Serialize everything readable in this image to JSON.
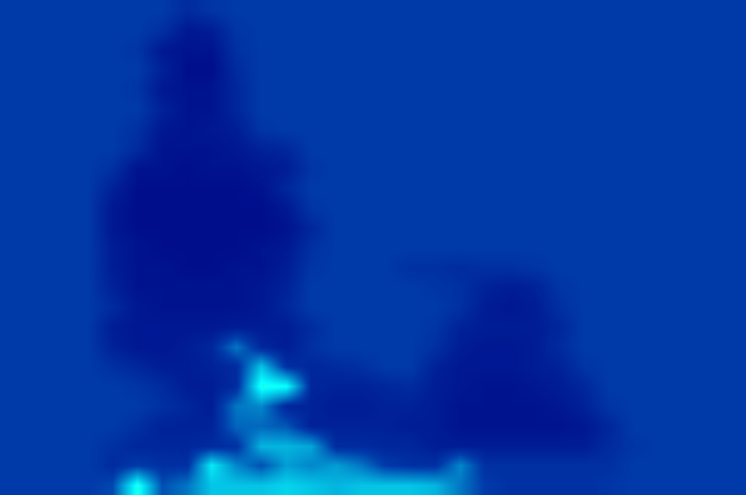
{
  "chart_data": {
    "type": "heatmap",
    "tick_labels": false,
    "zlim": [
      0,
      100
    ],
    "cells": [
      [
        12,
        12,
        12,
        12,
        12,
        12,
        12,
        9,
        11,
        12,
        12,
        12,
        12,
        12,
        12,
        12,
        12,
        12,
        12,
        12,
        12,
        12,
        12,
        12,
        12,
        12,
        12,
        12,
        12,
        12
      ],
      [
        12,
        12,
        12,
        12,
        12,
        12,
        10,
        5,
        6,
        11,
        12,
        12,
        12,
        12,
        12,
        12,
        12,
        12,
        12,
        12,
        12,
        12,
        12,
        12,
        12,
        12,
        12,
        12,
        12,
        12
      ],
      [
        12,
        12,
        12,
        12,
        12,
        11,
        5,
        4,
        4,
        10,
        12,
        12,
        12,
        12,
        12,
        12,
        12,
        12,
        12,
        12,
        12,
        12,
        12,
        12,
        12,
        12,
        12,
        12,
        12,
        12
      ],
      [
        12,
        12,
        12,
        12,
        12,
        12,
        7,
        3,
        3,
        9,
        12,
        12,
        12,
        12,
        12,
        12,
        12,
        12,
        12,
        12,
        12,
        12,
        12,
        12,
        12,
        12,
        12,
        12,
        12,
        12
      ],
      [
        12,
        12,
        12,
        12,
        12,
        11,
        5,
        4,
        4,
        8,
        12,
        12,
        12,
        12,
        12,
        12,
        12,
        12,
        12,
        12,
        12,
        12,
        12,
        12,
        12,
        12,
        12,
        12,
        12,
        12
      ],
      [
        12,
        12,
        12,
        12,
        12,
        12,
        7,
        4,
        4,
        8,
        12,
        12,
        12,
        12,
        12,
        12,
        12,
        12,
        12,
        12,
        12,
        12,
        12,
        12,
        12,
        12,
        12,
        12,
        12,
        12
      ],
      [
        12,
        12,
        12,
        12,
        12,
        10,
        5,
        4,
        5,
        6,
        11,
        12,
        12,
        12,
        12,
        12,
        12,
        12,
        12,
        12,
        12,
        12,
        12,
        12,
        12,
        12,
        12,
        12,
        12,
        12
      ],
      [
        12,
        12,
        12,
        12,
        12,
        9,
        4,
        4,
        4,
        5,
        7,
        8,
        12,
        12,
        12,
        12,
        12,
        12,
        12,
        12,
        12,
        12,
        12,
        12,
        12,
        12,
        12,
        12,
        12,
        12
      ],
      [
        12,
        12,
        12,
        12,
        10,
        4,
        4,
        3,
        4,
        4,
        5,
        6,
        11,
        12,
        12,
        12,
        12,
        12,
        12,
        12,
        12,
        12,
        12,
        12,
        12,
        12,
        12,
        12,
        12,
        12
      ],
      [
        12,
        12,
        12,
        12,
        7,
        3,
        3,
        3,
        3,
        3,
        4,
        8,
        12,
        12,
        12,
        12,
        12,
        12,
        12,
        12,
        12,
        12,
        12,
        12,
        12,
        12,
        12,
        12,
        12,
        12
      ],
      [
        12,
        12,
        12,
        12,
        5,
        3,
        3,
        3,
        3,
        3,
        3,
        5,
        11,
        12,
        12,
        12,
        12,
        12,
        12,
        12,
        12,
        12,
        12,
        12,
        12,
        12,
        12,
        12,
        12,
        12
      ],
      [
        12,
        12,
        12,
        12,
        5,
        3,
        3,
        3,
        3,
        3,
        3,
        4,
        8,
        12,
        12,
        12,
        12,
        12,
        12,
        12,
        12,
        12,
        12,
        12,
        12,
        12,
        12,
        12,
        12,
        12
      ],
      [
        12,
        12,
        12,
        12,
        6,
        4,
        3,
        3,
        3,
        3,
        4,
        5,
        10,
        12,
        12,
        12,
        12,
        12,
        12,
        12,
        12,
        12,
        12,
        12,
        12,
        12,
        12,
        12,
        12,
        12
      ],
      [
        12,
        12,
        12,
        12,
        6,
        4,
        4,
        3,
        3,
        4,
        4,
        6,
        11,
        12,
        12,
        12,
        10,
        10,
        9,
        10,
        10,
        11,
        12,
        12,
        12,
        12,
        12,
        12,
        12,
        12
      ],
      [
        12,
        12,
        12,
        12,
        7,
        4,
        4,
        4,
        4,
        4,
        5,
        7,
        12,
        12,
        12,
        12,
        12,
        11,
        10,
        7,
        6,
        7,
        11,
        12,
        12,
        12,
        12,
        12,
        12,
        12
      ],
      [
        12,
        12,
        12,
        12,
        9,
        5,
        4,
        4,
        4,
        4,
        5,
        8,
        12,
        12,
        12,
        12,
        12,
        12,
        10,
        6,
        5,
        6,
        10,
        12,
        12,
        12,
        12,
        12,
        12,
        12
      ],
      [
        12,
        12,
        12,
        12,
        6,
        5,
        5,
        5,
        5,
        6,
        6,
        6,
        9,
        12,
        12,
        12,
        12,
        11,
        7,
        6,
        6,
        6,
        8,
        12,
        12,
        12,
        12,
        12,
        12,
        12
      ],
      [
        12,
        12,
        12,
        12,
        7,
        5,
        5,
        6,
        8,
        20,
        8,
        6,
        10,
        12,
        12,
        12,
        12,
        10,
        6,
        5,
        5,
        6,
        9,
        12,
        12,
        12,
        12,
        12,
        12,
        12
      ],
      [
        12,
        12,
        12,
        12,
        10,
        8,
        6,
        6,
        7,
        9,
        30,
        10,
        8,
        9,
        10,
        12,
        12,
        7,
        5,
        5,
        5,
        6,
        7,
        11,
        12,
        12,
        12,
        12,
        12,
        12
      ],
      [
        12,
        12,
        12,
        12,
        12,
        11,
        9,
        6,
        6,
        9,
        40,
        38,
        8,
        7,
        7,
        8,
        9,
        6,
        5,
        4,
        4,
        5,
        6,
        8,
        12,
        12,
        12,
        12,
        12,
        12
      ],
      [
        12,
        12,
        12,
        12,
        12,
        12,
        10,
        8,
        6,
        20,
        22,
        8,
        7,
        6,
        6,
        7,
        7,
        6,
        4,
        4,
        4,
        4,
        5,
        7,
        11,
        12,
        12,
        12,
        12,
        12
      ],
      [
        12,
        12,
        12,
        12,
        12,
        10,
        7,
        7,
        7,
        18,
        18,
        16,
        7,
        7,
        7,
        7,
        6,
        6,
        4,
        4,
        4,
        4,
        4,
        5,
        8,
        12,
        12,
        12,
        12,
        12
      ],
      [
        12,
        12,
        12,
        12,
        10,
        8,
        8,
        8,
        9,
        10,
        28,
        28,
        26,
        9,
        9,
        8,
        8,
        6,
        6,
        6,
        6,
        6,
        6,
        6,
        9,
        11,
        12,
        12,
        12,
        12
      ],
      [
        12,
        12,
        12,
        12,
        9,
        12,
        10,
        10,
        35,
        22,
        15,
        25,
        22,
        25,
        20,
        12,
        10,
        10,
        22,
        10,
        10,
        10,
        10,
        10,
        10,
        12,
        12,
        12,
        12,
        12
      ],
      [
        12,
        12,
        12,
        12,
        14,
        40,
        15,
        20,
        30,
        30,
        30,
        32,
        30,
        28,
        30,
        30,
        30,
        28,
        20,
        12,
        10,
        10,
        10,
        10,
        11,
        12,
        12,
        12,
        12,
        12
      ]
    ]
  }
}
